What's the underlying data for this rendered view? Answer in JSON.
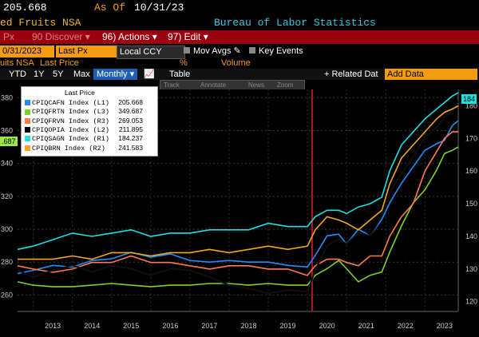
{
  "header": {
    "last_value": "205.668",
    "as_of_label": "As Of",
    "as_of_date": "10/31/23",
    "series_name": "ed Fruits NSA",
    "source": "Bureau of Labor Statistics"
  },
  "menubar": {
    "item0": "Px",
    "discover": "90 Discover ▾",
    "actions": "96) Actions ▾",
    "edit": "97) Edit ▾"
  },
  "params": {
    "date": "0/31/2023",
    "field": "Last Px",
    "currency": "Local CCY",
    "mov_avgs": "Mov Avgs",
    "key_events": "Key Events"
  },
  "subrow": {
    "name": "uits NSA",
    "last_price": "Last Price",
    "pct": "%",
    "volume": "Volume"
  },
  "tabs": {
    "ytd": "YTD",
    "1y": "1Y",
    "5y": "5Y",
    "max": "Max",
    "monthly": "Monthly ▾",
    "table": "Table",
    "related": "+ Related Dat",
    "add_data": "Add Data"
  },
  "toolbox": {
    "track": "Track",
    "annotate": "Annotate",
    "news": "News",
    "zoom": "Zoom"
  },
  "legend": {
    "title": "Last Price",
    "items": [
      {
        "label": "CPIQCAFN Index (L1)",
        "value": "205.668",
        "color": "#1f8fff"
      },
      {
        "label": "CPIQFRTN Index (L3)",
        "value": "349.687",
        "color": "#7dd22b"
      },
      {
        "label": "CPIQFRVN Index (R3)",
        "value": "269.053",
        "color": "#ff7a4d"
      },
      {
        "label": "CPIQOPIA Index (L2)",
        "value": "211.895",
        "color": "#000000"
      },
      {
        "label": "CPIQSAGN Index (R1)",
        "value": "184.237",
        "color": "#1ee0e0"
      },
      {
        "label": "CPIQBRN Index (R2)",
        "value": "241.583",
        "color": "#f5a623"
      }
    ]
  },
  "badges": {
    "left": ".687",
    "right": "184"
  },
  "chart_data": {
    "type": "line",
    "x_ticks": [
      "2013",
      "2014",
      "2015",
      "2016",
      "2017",
      "2018",
      "2019",
      "2020",
      "2021",
      "2022",
      "2023"
    ],
    "left_axis_ticks": [
      "380",
      "360",
      "340",
      "320",
      "300",
      "280",
      "260"
    ],
    "right_axis_ticks": [
      "180",
      "170",
      "160",
      "150",
      "140",
      "130",
      "120"
    ],
    "left_ylim": [
      250,
      385
    ],
    "right_ylim": [
      117,
      185
    ],
    "xlim": [
      2012.6,
      2023.85
    ],
    "marker_year": 2020.12,
    "series": [
      {
        "name": "CPIQCAFN Index (L1)",
        "color": "#1f8fff",
        "points": [
          [
            2012.6,
            273
          ],
          [
            2013.0,
            275
          ],
          [
            2013.5,
            278
          ],
          [
            2014.0,
            277
          ],
          [
            2014.5,
            281
          ],
          [
            2015.0,
            282
          ],
          [
            2015.5,
            286
          ],
          [
            2016.0,
            283
          ],
          [
            2016.5,
            285
          ],
          [
            2017.0,
            281
          ],
          [
            2017.5,
            280
          ],
          [
            2018.0,
            281
          ],
          [
            2018.5,
            280
          ],
          [
            2019.0,
            280
          ],
          [
            2019.5,
            278
          ],
          [
            2020.0,
            277
          ],
          [
            2020.2,
            284
          ],
          [
            2020.5,
            296
          ],
          [
            2020.8,
            297
          ],
          [
            2021.0,
            291
          ],
          [
            2021.3,
            300
          ],
          [
            2021.6,
            296
          ],
          [
            2021.9,
            306
          ],
          [
            2022.1,
            316
          ],
          [
            2022.4,
            328
          ],
          [
            2022.7,
            338
          ],
          [
            2023.0,
            348
          ],
          [
            2023.3,
            352
          ],
          [
            2023.5,
            354
          ],
          [
            2023.7,
            363
          ],
          [
            2023.85,
            366
          ]
        ]
      },
      {
        "name": "CPIQFRTN Index (L3)",
        "color": "#7dd22b",
        "points": [
          [
            2012.6,
            268
          ],
          [
            2013.0,
            266
          ],
          [
            2013.5,
            265
          ],
          [
            2014.0,
            265
          ],
          [
            2014.5,
            266
          ],
          [
            2015.0,
            267
          ],
          [
            2015.5,
            266
          ],
          [
            2016.0,
            265
          ],
          [
            2016.5,
            266
          ],
          [
            2017.0,
            266
          ],
          [
            2017.5,
            267
          ],
          [
            2018.0,
            267
          ],
          [
            2018.5,
            266
          ],
          [
            2019.0,
            267
          ],
          [
            2019.5,
            266
          ],
          [
            2020.0,
            266
          ],
          [
            2020.2,
            272
          ],
          [
            2020.5,
            276
          ],
          [
            2020.8,
            281
          ],
          [
            2021.0,
            276
          ],
          [
            2021.3,
            268
          ],
          [
            2021.6,
            272
          ],
          [
            2021.9,
            274
          ],
          [
            2022.1,
            286
          ],
          [
            2022.4,
            302
          ],
          [
            2022.7,
            316
          ],
          [
            2023.0,
            324
          ],
          [
            2023.3,
            336
          ],
          [
            2023.5,
            346
          ],
          [
            2023.7,
            348
          ],
          [
            2023.85,
            350
          ]
        ]
      },
      {
        "name": "CPIQFRVN Index (R3)",
        "color": "#ff7a4d",
        "points": [
          [
            2012.6,
            131
          ],
          [
            2013.0,
            130
          ],
          [
            2013.5,
            129
          ],
          [
            2014.0,
            130
          ],
          [
            2014.5,
            132
          ],
          [
            2015.0,
            132
          ],
          [
            2015.5,
            134
          ],
          [
            2016.0,
            132
          ],
          [
            2016.5,
            132
          ],
          [
            2017.0,
            131
          ],
          [
            2017.5,
            130
          ],
          [
            2018.0,
            131
          ],
          [
            2018.5,
            131
          ],
          [
            2019.0,
            130
          ],
          [
            2019.5,
            130
          ],
          [
            2020.0,
            128
          ],
          [
            2020.2,
            131
          ],
          [
            2020.5,
            133
          ],
          [
            2020.8,
            133
          ],
          [
            2021.0,
            132
          ],
          [
            2021.3,
            131
          ],
          [
            2021.6,
            134
          ],
          [
            2021.9,
            134
          ],
          [
            2022.1,
            140
          ],
          [
            2022.4,
            146
          ],
          [
            2022.7,
            150
          ],
          [
            2023.0,
            160
          ],
          [
            2023.3,
            166
          ],
          [
            2023.5,
            170
          ],
          [
            2023.7,
            172
          ],
          [
            2023.85,
            172
          ]
        ]
      },
      {
        "name": "CPIQOPIA Index (L2)",
        "color": "#000000",
        "points": [
          [
            2012.6,
            275
          ],
          [
            2013.0,
            271
          ],
          [
            2013.5,
            275
          ],
          [
            2014.0,
            278
          ],
          [
            2014.5,
            274
          ],
          [
            2015.0,
            278
          ],
          [
            2015.5,
            276
          ],
          [
            2016.0,
            272
          ],
          [
            2016.5,
            276
          ],
          [
            2017.0,
            275
          ],
          [
            2017.5,
            271
          ],
          [
            2018.0,
            266
          ],
          [
            2018.5,
            264
          ],
          [
            2019.0,
            261
          ],
          [
            2019.5,
            263
          ],
          [
            2020.0,
            262
          ],
          [
            2020.2,
            275
          ],
          [
            2020.5,
            290
          ],
          [
            2020.8,
            294
          ],
          [
            2021.0,
            291
          ],
          [
            2021.3,
            298
          ],
          [
            2021.6,
            296
          ],
          [
            2021.9,
            308
          ],
          [
            2022.1,
            322
          ],
          [
            2022.4,
            334
          ],
          [
            2022.7,
            344
          ],
          [
            2023.0,
            356
          ],
          [
            2023.3,
            362
          ],
          [
            2023.5,
            368
          ],
          [
            2023.7,
            372
          ],
          [
            2023.85,
            378
          ]
        ]
      },
      {
        "name": "CPIQSAGN Index (R1)",
        "color": "#1ee0e0",
        "points": [
          [
            2012.6,
            136
          ],
          [
            2013.0,
            137
          ],
          [
            2013.5,
            139
          ],
          [
            2014.0,
            141
          ],
          [
            2014.5,
            140
          ],
          [
            2015.0,
            141
          ],
          [
            2015.5,
            142
          ],
          [
            2016.0,
            140
          ],
          [
            2016.5,
            141
          ],
          [
            2017.0,
            141
          ],
          [
            2017.5,
            142
          ],
          [
            2018.0,
            142
          ],
          [
            2018.5,
            142
          ],
          [
            2019.0,
            144
          ],
          [
            2019.5,
            143
          ],
          [
            2020.0,
            143
          ],
          [
            2020.2,
            146
          ],
          [
            2020.5,
            148
          ],
          [
            2020.8,
            148
          ],
          [
            2021.0,
            147
          ],
          [
            2021.3,
            149
          ],
          [
            2021.6,
            150
          ],
          [
            2021.9,
            152
          ],
          [
            2022.1,
            160
          ],
          [
            2022.4,
            168
          ],
          [
            2022.7,
            172
          ],
          [
            2023.0,
            176
          ],
          [
            2023.3,
            179
          ],
          [
            2023.5,
            181
          ],
          [
            2023.7,
            183
          ],
          [
            2023.85,
            184
          ]
        ]
      },
      {
        "name": "CPIQBRN Index (R2)",
        "color": "#f5a623",
        "points": [
          [
            2012.6,
            133
          ],
          [
            2013.0,
            133
          ],
          [
            2013.5,
            133
          ],
          [
            2014.0,
            134
          ],
          [
            2014.5,
            133
          ],
          [
            2015.0,
            135
          ],
          [
            2015.5,
            135
          ],
          [
            2016.0,
            134
          ],
          [
            2016.5,
            135
          ],
          [
            2017.0,
            135
          ],
          [
            2017.5,
            136
          ],
          [
            2018.0,
            135
          ],
          [
            2018.5,
            136
          ],
          [
            2019.0,
            137
          ],
          [
            2019.5,
            136
          ],
          [
            2020.0,
            137
          ],
          [
            2020.2,
            142
          ],
          [
            2020.5,
            146
          ],
          [
            2020.8,
            145
          ],
          [
            2021.0,
            144
          ],
          [
            2021.3,
            142
          ],
          [
            2021.6,
            145
          ],
          [
            2021.9,
            148
          ],
          [
            2022.1,
            156
          ],
          [
            2022.4,
            164
          ],
          [
            2022.7,
            168
          ],
          [
            2023.0,
            172
          ],
          [
            2023.3,
            176
          ],
          [
            2023.5,
            178
          ],
          [
            2023.7,
            179
          ],
          [
            2023.85,
            180
          ]
        ]
      }
    ]
  }
}
